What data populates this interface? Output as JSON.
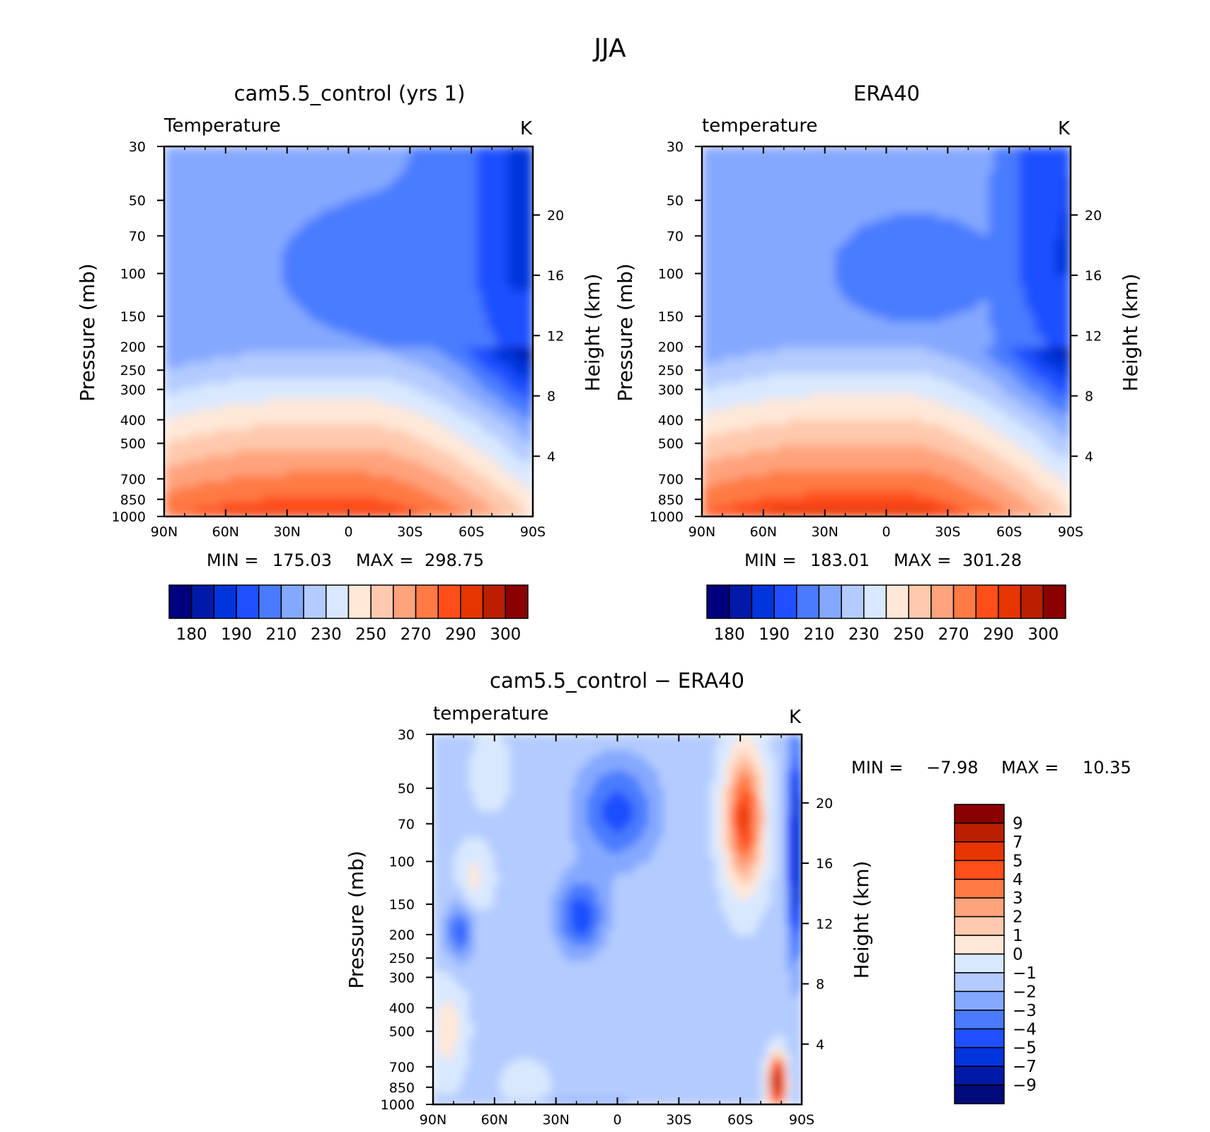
{
  "figure": {
    "title": "JJA"
  },
  "colors": {
    "temperature_levels": [
      "#00007f",
      "#0019a8",
      "#0035dc",
      "#1f4fff",
      "#4a7bff",
      "#85a8ff",
      "#b3cbff",
      "#d8e8ff",
      "#ffe8d8",
      "#ffc9ad",
      "#ffa37d",
      "#ff7a45",
      "#ff4e1a",
      "#e63500",
      "#bb1e00",
      "#8b0000"
    ],
    "difference_levels": [
      "#000a7a",
      "#0019a8",
      "#0035dc",
      "#1f4fff",
      "#4a7bff",
      "#85a8ff",
      "#b3cbff",
      "#d8e8ff",
      "#ffe8d8",
      "#ffc9ad",
      "#ffa37d",
      "#ff7a45",
      "#ff4e1a",
      "#e63500",
      "#bb1e00",
      "#8b0000"
    ]
  },
  "chart_data": [
    {
      "type": "heatmap",
      "title": "cam5.5_control (yrs 1)",
      "field_label": "Temperature",
      "units": "K",
      "ylabel": "Pressure (mb)",
      "ylabel_right": "Height (km)",
      "x_ticks": [
        "90N",
        "60N",
        "30N",
        "0",
        "30S",
        "60S",
        "90S"
      ],
      "y_ticks": [
        "30",
        "50",
        "70",
        "100",
        "150",
        "200",
        "250",
        "300",
        "400",
        "500",
        "700",
        "850",
        "1000"
      ],
      "y_ticks_right": [
        "20",
        "16",
        "12",
        "8",
        "4"
      ],
      "ylim": [
        1000,
        30
      ],
      "y_log_scale": true,
      "stats": {
        "min_label": "MIN =",
        "min": "175.03",
        "max_label": "MAX =",
        "max": "298.75"
      },
      "colorbar_labels": [
        "180",
        "190",
        "210",
        "230",
        "250",
        "270",
        "290",
        "300"
      ],
      "level_bounds": [
        180,
        190,
        200,
        210,
        220,
        230,
        240,
        250,
        260,
        270,
        280,
        290,
        295,
        300
      ],
      "model_offset": 0
    },
    {
      "type": "heatmap",
      "title": "ERA40",
      "field_label": "temperature",
      "units": "K",
      "ylabel": "Pressure (mb)",
      "ylabel_right": "Height (km)",
      "x_ticks": [
        "90N",
        "60N",
        "30N",
        "0",
        "30S",
        "60S",
        "90S"
      ],
      "y_ticks": [
        "30",
        "50",
        "70",
        "100",
        "150",
        "200",
        "250",
        "300",
        "400",
        "500",
        "700",
        "850",
        "1000"
      ],
      "y_ticks_right": [
        "20",
        "16",
        "12",
        "8",
        "4"
      ],
      "ylim": [
        1000,
        30
      ],
      "y_log_scale": true,
      "stats": {
        "min_label": "MIN =",
        "min": "183.01",
        "max_label": "MAX =",
        "max": "301.28"
      },
      "colorbar_labels": [
        "180",
        "190",
        "210",
        "230",
        "250",
        "270",
        "290",
        "300"
      ],
      "level_bounds": [
        180,
        190,
        200,
        210,
        220,
        230,
        240,
        250,
        260,
        270,
        280,
        290,
        295,
        300
      ],
      "model_offset": 2
    },
    {
      "type": "heatmap",
      "title": "cam5.5_control − ERA40",
      "field_label": "temperature",
      "units": "K",
      "ylabel": "Pressure (mb)",
      "ylabel_right": "Height (km)",
      "x_ticks": [
        "90N",
        "60N",
        "30N",
        "0",
        "30S",
        "60S",
        "90S"
      ],
      "y_ticks": [
        "30",
        "50",
        "70",
        "100",
        "150",
        "200",
        "250",
        "300",
        "400",
        "500",
        "700",
        "850",
        "1000"
      ],
      "y_ticks_right": [
        "20",
        "16",
        "12",
        "8",
        "4"
      ],
      "ylim": [
        1000,
        30
      ],
      "y_log_scale": true,
      "stats": {
        "min_label": "MIN =",
        "min": "−7.98",
        "max_label": "MAX =",
        "max": "10.35"
      },
      "colorbar_labels": [
        "9",
        "7",
        "5",
        "4",
        "3",
        "2",
        "1",
        "0",
        "−1",
        "−2",
        "−3",
        "−4",
        "−5",
        "−7",
        "−9"
      ],
      "level_bounds": [
        -9,
        -7,
        -5,
        -4,
        -3,
        -2,
        -1,
        0,
        1,
        2,
        3,
        4,
        5,
        7,
        9
      ]
    }
  ]
}
